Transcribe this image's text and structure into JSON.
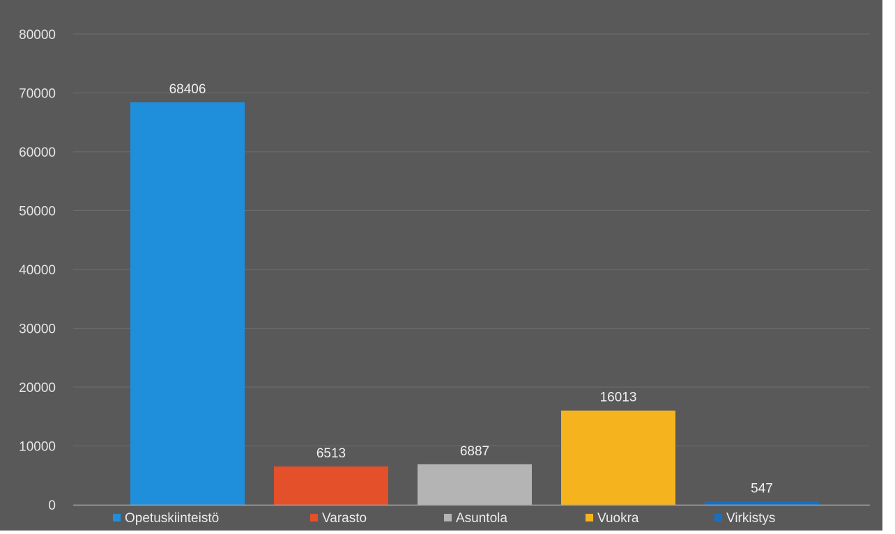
{
  "chart_data": {
    "type": "bar",
    "title": "",
    "xlabel": "",
    "ylabel": "",
    "ylim": [
      0,
      80000
    ],
    "yticks": [
      0,
      10000,
      20000,
      30000,
      40000,
      50000,
      60000,
      70000,
      80000
    ],
    "grid": true,
    "legend_position": "bottom",
    "data_labels": true,
    "series": [
      {
        "name": "Opetuskiinteistö",
        "value": 68406,
        "color": "#1f8fdc"
      },
      {
        "name": "Varasto",
        "value": 6513,
        "color": "#e3502a"
      },
      {
        "name": "Asuntola",
        "value": 6887,
        "color": "#b4b4b4"
      },
      {
        "name": "Vuokra",
        "value": 16013,
        "color": "#f5b41e"
      },
      {
        "name": "Virkistys",
        "value": 547,
        "color": "#1a6fc0"
      }
    ]
  },
  "colors": {
    "background": "#595959",
    "gridline": "#6e6e6e",
    "axis": "#a8a8a8"
  }
}
